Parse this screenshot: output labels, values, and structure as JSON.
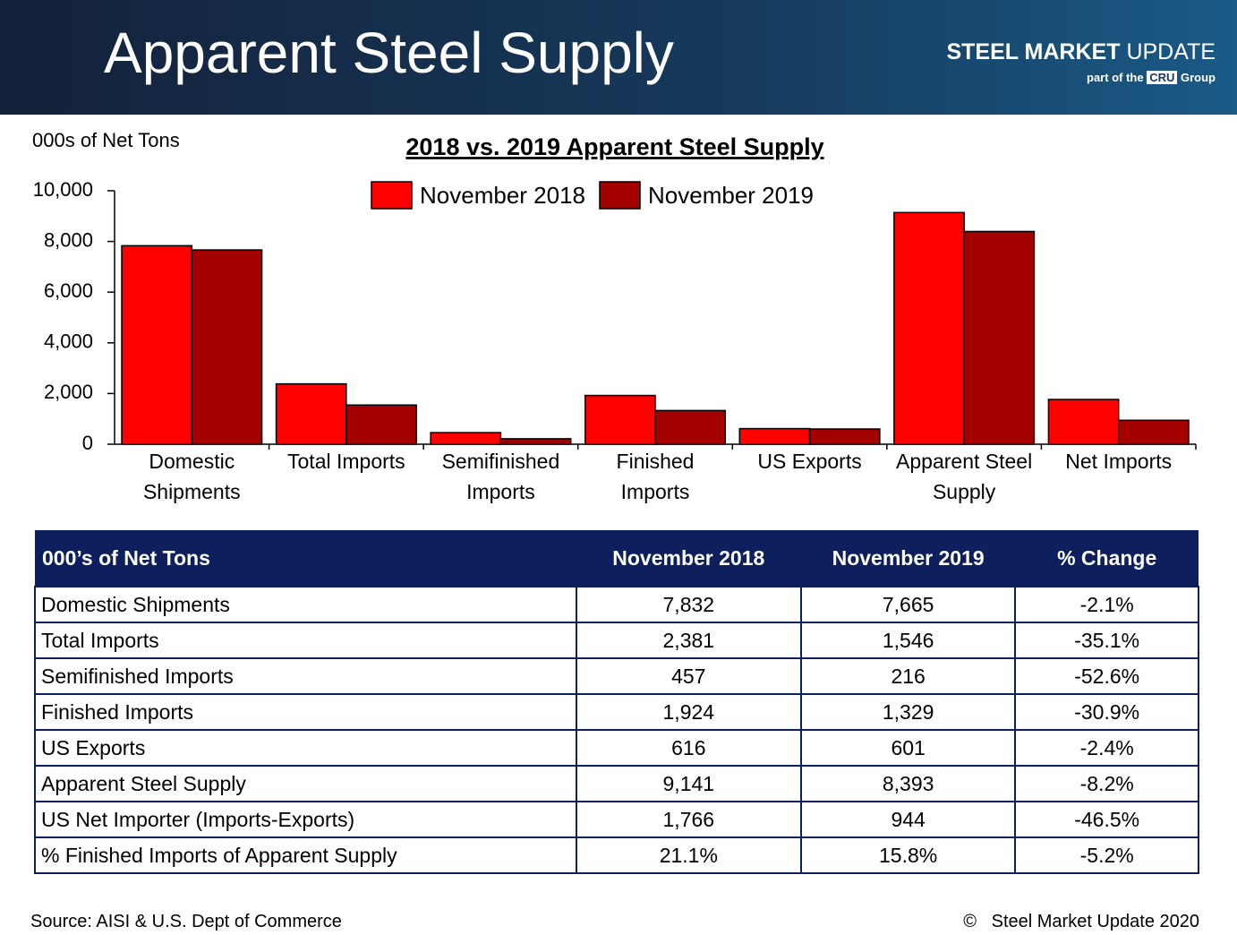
{
  "header": {
    "title": "Apparent Steel Supply",
    "logo_bold": "STEEL MARKET",
    "logo_light": "UPDATE",
    "tagline_pre": "part of the",
    "tagline_brand": "CRU",
    "tagline_post": "Group"
  },
  "chart_data": {
    "type": "bar",
    "title": "2018 vs. 2019 Apparent Steel Supply",
    "y_label": "000s of Net Tons",
    "categories": [
      "Domestic Shipments",
      "Total Imports",
      "Semifinished Imports",
      "Finished Imports",
      "US Exports",
      "Apparent Steel Supply",
      "Net Imports"
    ],
    "series": [
      {
        "name": "November 2018",
        "color": "#ff0000",
        "values": [
          7832,
          2381,
          457,
          1924,
          616,
          9141,
          1766
        ]
      },
      {
        "name": "November 2019",
        "color": "#a50000",
        "values": [
          7665,
          1546,
          216,
          1329,
          601,
          8393,
          944
        ]
      }
    ],
    "ylim": [
      0,
      10000
    ],
    "yticks": [
      0,
      {
        "value": 2000,
        "label": "2,000"
      },
      {
        "value": 4000,
        "label": "4,000"
      },
      {
        "value": 6000,
        "label": "6,000"
      },
      {
        "value": 8000,
        "label": "8,000"
      },
      {
        "value": 10000,
        "label": "10,000"
      }
    ],
    "grid": false,
    "legend": "top"
  },
  "table": {
    "header": [
      "000’s of Net Tons",
      "November 2018",
      "November 2019",
      "% Change"
    ],
    "rows": [
      [
        "Domestic Shipments",
        "7,832",
        "7,665",
        "-2.1%"
      ],
      [
        "Total Imports",
        "2,381",
        "1,546",
        "-35.1%"
      ],
      [
        "Semifinished Imports",
        "457",
        "216",
        "-52.6%"
      ],
      [
        "Finished Imports",
        "1,924",
        "1,329",
        "-30.9%"
      ],
      [
        "US Exports",
        "616",
        "601",
        "-2.4%"
      ],
      [
        "Apparent Steel Supply",
        "9,141",
        "8,393",
        "-8.2%"
      ],
      [
        "US Net Importer (Imports-Exports)",
        "1,766",
        "944",
        "-46.5%"
      ],
      [
        "% Finished Imports of Apparent Supply",
        "21.1%",
        "15.8%",
        "-5.2%"
      ]
    ]
  },
  "footer": {
    "source": "Source:  AISI & U.S. Dept of Commerce",
    "copyright_symbol": "©",
    "copyright": "Steel Market Update 2020"
  }
}
